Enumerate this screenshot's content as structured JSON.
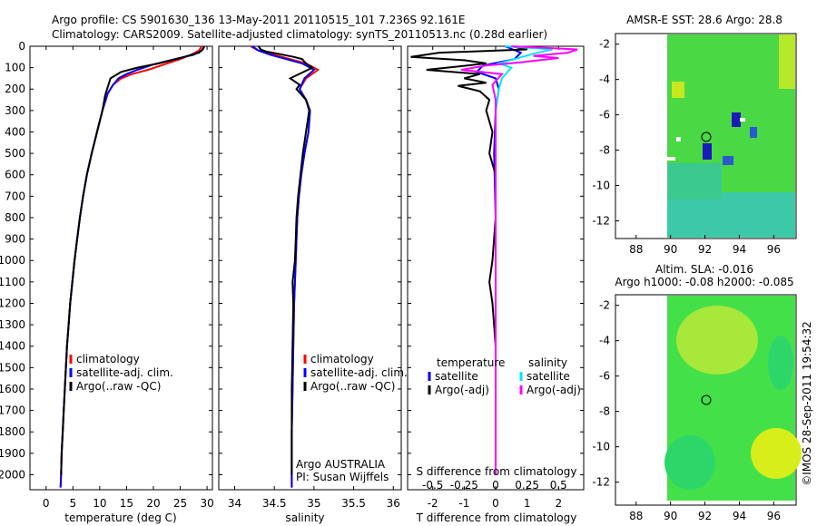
{
  "header": {
    "line1": "Argo profile: CS 5901630_136 13-May-2011 20110515_101 7.236S 92.161E",
    "line2": "Climatology: CARS2009. Satellite-adjusted climatology: synTS_20110513.nc (0.28d earlier)"
  },
  "colors": {
    "climatology": "#ff0000",
    "satellite": "#0000ff",
    "argo": "#000000",
    "sal_satellite": "#00e5ff",
    "sal_argo": "#ff00ff"
  },
  "depth_ticks": [
    "0",
    "100",
    "200",
    "300",
    "400",
    "500",
    "600",
    "700",
    "800",
    "900",
    "1000",
    "1100",
    "1200",
    "1300",
    "1400",
    "1500",
    "1600",
    "1700",
    "1800",
    "1900",
    "2000"
  ],
  "chart_data": [
    {
      "type": "line",
      "xlabel": "temperature (deg C)",
      "xticks": [
        "0",
        "5",
        "10",
        "15",
        "20",
        "25",
        "30"
      ],
      "xlim": [
        -3,
        31
      ],
      "ylim": [
        2070,
        0
      ],
      "legend": [
        "climatology",
        "satellite-adj. clim.",
        "Argo(..raw -QC)"
      ],
      "legend_placement": "center",
      "series": [
        {
          "name": "climatology",
          "points": [
            [
              29,
              0
            ],
            [
              28.5,
              20
            ],
            [
              27,
              40
            ],
            [
              25,
              60
            ],
            [
              22,
              85
            ],
            [
              19,
              110
            ],
            [
              16,
              130
            ],
            [
              14,
              150
            ],
            [
              12.5,
              180
            ],
            [
              11.5,
              220
            ],
            [
              10.5,
              300
            ],
            [
              9.5,
              400
            ],
            [
              8.5,
              500
            ],
            [
              7.6,
              600
            ],
            [
              6.9,
              700
            ],
            [
              6.3,
              800
            ],
            [
              5.8,
              900
            ],
            [
              5.3,
              1000
            ],
            [
              4.9,
              1100
            ],
            [
              4.5,
              1200
            ],
            [
              4.2,
              1300
            ],
            [
              3.9,
              1400
            ],
            [
              3.7,
              1500
            ],
            [
              3.5,
              1600
            ],
            [
              3.3,
              1700
            ],
            [
              3.1,
              1800
            ],
            [
              2.9,
              1900
            ],
            [
              2.8,
              2000
            ],
            [
              2.7,
              2060
            ]
          ]
        },
        {
          "name": "satellite-adj. clim.",
          "points": [
            [
              29.5,
              0
            ],
            [
              29,
              20
            ],
            [
              27.5,
              40
            ],
            [
              24,
              60
            ],
            [
              20,
              85
            ],
            [
              17,
              110
            ],
            [
              15,
              130
            ],
            [
              13.5,
              150
            ],
            [
              12.5,
              180
            ],
            [
              11.5,
              220
            ],
            [
              10.5,
              300
            ],
            [
              9.5,
              400
            ],
            [
              8.5,
              500
            ],
            [
              7.6,
              600
            ],
            [
              6.9,
              700
            ],
            [
              6.3,
              800
            ],
            [
              5.8,
              900
            ],
            [
              5.3,
              1000
            ],
            [
              4.9,
              1100
            ],
            [
              4.5,
              1200
            ],
            [
              4.2,
              1300
            ],
            [
              3.9,
              1400
            ],
            [
              3.7,
              1500
            ],
            [
              3.5,
              1600
            ],
            [
              3.3,
              1700
            ],
            [
              3.1,
              1800
            ],
            [
              2.9,
              1900
            ],
            [
              2.8,
              2000
            ],
            [
              2.7,
              2060
            ]
          ]
        },
        {
          "name": "Argo(..raw -QC)",
          "points": [
            [
              29.5,
              0
            ],
            [
              29.2,
              15
            ],
            [
              28.5,
              30
            ],
            [
              25,
              55
            ],
            [
              21,
              80
            ],
            [
              17,
              100
            ],
            [
              14,
              120
            ],
            [
              12,
              150
            ],
            [
              11.5,
              190
            ],
            [
              11,
              230
            ],
            [
              10.5,
              300
            ],
            [
              9.5,
              400
            ],
            [
              8.5,
              500
            ],
            [
              7.6,
              600
            ],
            [
              6.9,
              700
            ],
            [
              6.3,
              800
            ],
            [
              5.8,
              900
            ],
            [
              5.3,
              1000
            ],
            [
              4.9,
              1100
            ],
            [
              4.5,
              1200
            ],
            [
              4.2,
              1300
            ],
            [
              3.9,
              1400
            ],
            [
              3.7,
              1500
            ],
            [
              3.5,
              1600
            ],
            [
              3.3,
              1700
            ],
            [
              3.1,
              1800
            ],
            [
              2.9,
              1900
            ],
            [
              2.8,
              2000
            ]
          ]
        }
      ]
    },
    {
      "type": "line",
      "xlabel": "salinity",
      "xticks": [
        "34",
        "34.5",
        "35",
        "35.5",
        "36"
      ],
      "xlim": [
        33.8,
        36.1
      ],
      "ylim": [
        2070,
        0
      ],
      "legend": [
        "climatology",
        "satellite-adj. clim.",
        "Argo(..raw -QC)"
      ],
      "legend_placement": "center",
      "annotation": [
        "Argo AUSTRALIA",
        "PI: Susan Wijffels"
      ],
      "series": [
        {
          "name": "climatology",
          "points": [
            [
              34.2,
              0
            ],
            [
              34.3,
              20
            ],
            [
              34.5,
              40
            ],
            [
              34.7,
              60
            ],
            [
              34.9,
              80
            ],
            [
              35.05,
              110
            ],
            [
              34.9,
              150
            ],
            [
              34.82,
              200
            ],
            [
              34.9,
              250
            ],
            [
              34.95,
              300
            ],
            [
              34.93,
              400
            ],
            [
              34.88,
              500
            ],
            [
              34.84,
              600
            ],
            [
              34.81,
              700
            ],
            [
              34.79,
              800
            ],
            [
              34.78,
              900
            ],
            [
              34.77,
              1000
            ],
            [
              34.76,
              1100
            ],
            [
              34.75,
              1200
            ],
            [
              34.74,
              1400
            ],
            [
              34.73,
              1600
            ],
            [
              34.72,
              1800
            ],
            [
              34.72,
              2060
            ]
          ]
        },
        {
          "name": "satellite-adj. clim.",
          "points": [
            [
              34.22,
              0
            ],
            [
              34.3,
              20
            ],
            [
              34.45,
              40
            ],
            [
              34.65,
              60
            ],
            [
              34.85,
              80
            ],
            [
              35.0,
              110
            ],
            [
              34.88,
              150
            ],
            [
              34.82,
              200
            ],
            [
              34.9,
              250
            ],
            [
              34.95,
              300
            ],
            [
              34.93,
              400
            ],
            [
              34.88,
              500
            ],
            [
              34.84,
              600
            ],
            [
              34.81,
              700
            ],
            [
              34.79,
              800
            ],
            [
              34.78,
              900
            ],
            [
              34.77,
              1000
            ],
            [
              34.76,
              1100
            ],
            [
              34.75,
              1200
            ],
            [
              34.74,
              1400
            ],
            [
              34.73,
              1600
            ],
            [
              34.72,
              1800
            ],
            [
              34.72,
              2060
            ]
          ]
        },
        {
          "name": "Argo(..raw -QC)",
          "points": [
            [
              34.3,
              0
            ],
            [
              34.33,
              15
            ],
            [
              34.4,
              25
            ],
            [
              34.55,
              35
            ],
            [
              34.75,
              50
            ],
            [
              34.85,
              60
            ],
            [
              34.9,
              80
            ],
            [
              34.98,
              100
            ],
            [
              34.7,
              150
            ],
            [
              34.82,
              180
            ],
            [
              34.78,
              200
            ],
            [
              34.9,
              250
            ],
            [
              34.94,
              300
            ],
            [
              34.9,
              400
            ],
            [
              34.86,
              500
            ],
            [
              34.83,
              600
            ],
            [
              34.8,
              700
            ],
            [
              34.78,
              800
            ],
            [
              34.77,
              900
            ],
            [
              34.76,
              1000
            ],
            [
              34.73,
              1100
            ],
            [
              34.74,
              1200
            ],
            [
              34.73,
              1400
            ],
            [
              34.72,
              1600
            ],
            [
              34.72,
              1800
            ],
            [
              34.72,
              2000
            ]
          ]
        }
      ]
    },
    {
      "type": "line",
      "xlabel": "T difference from climatology",
      "xticks": [
        "-2",
        "-1",
        "0",
        "1",
        "2"
      ],
      "xlim": [
        -2.8,
        2.8
      ],
      "x2label": "S difference from climatology",
      "x2ticks": [
        "-0.5",
        "-0.25",
        "0",
        "0.25",
        "0.5"
      ],
      "ylim": [
        2070,
        0
      ],
      "legend": [
        "temperature",
        "satellite",
        "Argo(-adj)",
        "salinity",
        "satellite",
        "Argo(-adj)"
      ],
      "legend_placement": "center",
      "series": [
        {
          "name": "satellite",
          "points": [
            [
              0.3,
              0
            ],
            [
              0.8,
              30
            ],
            [
              0.6,
              60
            ],
            [
              -0.4,
              90
            ],
            [
              -0.6,
              120
            ],
            [
              0,
              150
            ],
            [
              0.1,
              200
            ],
            [
              0,
              300
            ],
            [
              -0.05,
              500
            ],
            [
              0,
              800
            ],
            [
              0,
              1200
            ],
            [
              0,
              1600
            ],
            [
              0,
              2000
            ]
          ]
        },
        {
          "name": "Argo(-adj)",
          "points": [
            [
              0.5,
              0
            ],
            [
              1.0,
              15
            ],
            [
              -1.8,
              30
            ],
            [
              -2.7,
              50
            ],
            [
              -1.0,
              65
            ],
            [
              -0.3,
              80
            ],
            [
              -1.2,
              95
            ],
            [
              -2.2,
              110
            ],
            [
              -0.5,
              130
            ],
            [
              -1.0,
              150
            ],
            [
              -0.3,
              170
            ],
            [
              -1.2,
              185
            ],
            [
              -0.5,
              210
            ],
            [
              -0.2,
              250
            ],
            [
              -0.3,
              300
            ],
            [
              -0.1,
              400
            ],
            [
              -0.2,
              500
            ],
            [
              0,
              600
            ],
            [
              0,
              800
            ],
            [
              -0.1,
              1000
            ],
            [
              -0.2,
              1100
            ],
            [
              -0.1,
              1200
            ],
            [
              0,
              1400
            ],
            [
              0,
              1600
            ],
            [
              0,
              1800
            ],
            [
              0,
              2000
            ]
          ]
        },
        {
          "name": "salinity satellite",
          "points": [
            [
              0.3,
              0
            ],
            [
              1.8,
              15
            ],
            [
              1.2,
              35
            ],
            [
              0.6,
              60
            ],
            [
              0.1,
              80
            ],
            [
              0.5,
              100
            ],
            [
              0.2,
              150
            ],
            [
              0.1,
              200
            ],
            [
              0,
              300
            ],
            [
              0,
              500
            ],
            [
              0,
              1000
            ],
            [
              0,
              1500
            ],
            [
              0,
              2000
            ]
          ]
        },
        {
          "name": "salinity Argo(-adj)",
          "points": [
            [
              0.5,
              0
            ],
            [
              2.6,
              15
            ],
            [
              2.3,
              30
            ],
            [
              1.2,
              45
            ],
            [
              2.0,
              55
            ],
            [
              0.8,
              75
            ],
            [
              -0.3,
              90
            ],
            [
              -1.1,
              110
            ],
            [
              0.2,
              130
            ],
            [
              -0.1,
              180
            ],
            [
              0,
              250
            ],
            [
              0,
              400
            ],
            [
              0,
              800
            ],
            [
              0,
              1200
            ],
            [
              0,
              1600
            ],
            [
              0,
              2000
            ]
          ]
        }
      ]
    }
  ],
  "maps": {
    "sst": {
      "title": "AMSR-E SST: 28.6 Argo: 28.8",
      "xticks": [
        "88",
        "90",
        "92",
        "94",
        "96"
      ],
      "yticks": [
        "-2",
        "-4",
        "-6",
        "-8",
        "-10",
        "-12"
      ]
    },
    "sla": {
      "title_line1": "Altim. SLA: -0.016",
      "title_line2": "Argo h1000: -0.08 h2000: -0.085",
      "xticks": [
        "88",
        "90",
        "92",
        "94",
        "96"
      ],
      "yticks": [
        "-2",
        "-4",
        "-6",
        "-8",
        "-10",
        "-12"
      ]
    },
    "credit": "©IMOS 28-Sep-2011 19:54:32"
  }
}
